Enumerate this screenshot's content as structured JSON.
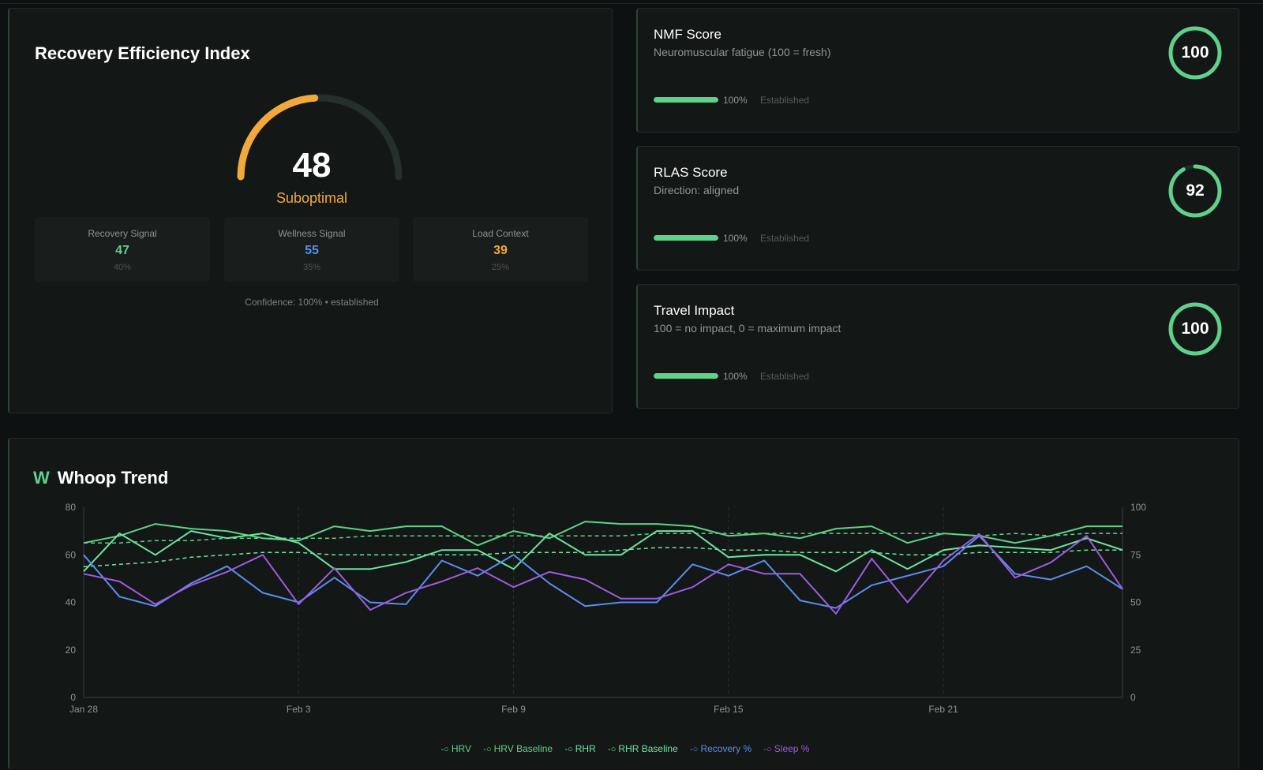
{
  "rei": {
    "title": "Recovery Efficiency Index",
    "score": "48",
    "score_value": 48,
    "status": "Suboptimal",
    "status_color": "#f2a93b",
    "signals": [
      {
        "label": "Recovery Signal",
        "value": "47",
        "weight": "40%",
        "color": "#5fd18a"
      },
      {
        "label": "Wellness Signal",
        "value": "55",
        "weight": "35%",
        "color": "#5b8def"
      },
      {
        "label": "Load Context",
        "value": "39",
        "weight": "25%",
        "color": "#f2a93b"
      }
    ],
    "confidence": "Confidence: 100% • established"
  },
  "scores": [
    {
      "title": "NMF Score",
      "subtitle": "Neuromuscular fatigue (100 = fresh)",
      "value": "100",
      "value_num": 100,
      "confidence_pct": "100%",
      "confidence_num": 100,
      "state": "Established"
    },
    {
      "title": "RLAS Score",
      "subtitle": "Direction: aligned",
      "value": "92",
      "value_num": 92,
      "confidence_pct": "100%",
      "confidence_num": 100,
      "state": "Established"
    },
    {
      "title": "Travel Impact",
      "subtitle": "100 = no impact, 0 = maximum impact",
      "value": "100",
      "value_num": 100,
      "confidence_pct": "100%",
      "confidence_num": 100,
      "state": "Established"
    }
  ],
  "trend": {
    "icon": "W",
    "title": "Whoop Trend",
    "legend": [
      "HRV",
      "HRV Baseline",
      "RHR",
      "RHR Baseline",
      "Recovery %",
      "Sleep %"
    ]
  },
  "chart_data": {
    "type": "line",
    "x_ticks": [
      "Jan 28",
      "Feb 3",
      "Feb 9",
      "Feb 15",
      "Feb 21"
    ],
    "x_tick_index": [
      0,
      6,
      12,
      18,
      24
    ],
    "x_count": 30,
    "y_left": {
      "ticks": [
        0,
        20,
        40,
        60,
        80
      ],
      "range": [
        0,
        80
      ]
    },
    "y_right": {
      "ticks": [
        0,
        25,
        50,
        75,
        100
      ],
      "range": [
        0,
        100
      ]
    },
    "grid": "vertical dashed",
    "series": [
      {
        "name": "HRV",
        "axis": "left",
        "color": "#5fd18a",
        "dashed": false,
        "values": [
          65,
          68,
          73,
          71,
          70,
          67,
          66,
          72,
          70,
          72,
          72,
          64,
          70,
          67,
          74,
          73,
          73,
          72,
          68,
          69,
          67,
          71,
          72,
          65,
          69,
          68,
          65,
          68,
          72,
          72
        ]
      },
      {
        "name": "HRV Baseline",
        "axis": "left",
        "color": "#5fd18a",
        "dashed": true,
        "values": [
          65,
          65,
          66,
          66,
          67,
          67,
          67,
          67,
          68,
          68,
          68,
          68,
          68,
          68,
          68,
          68,
          69,
          69,
          69,
          69,
          69,
          69,
          69,
          69,
          69,
          68,
          69,
          68,
          69,
          69
        ]
      },
      {
        "name": "RHR",
        "axis": "left",
        "color": "#6fe3a0",
        "dashed": false,
        "values": [
          53,
          69,
          60,
          70,
          67,
          69,
          65,
          54,
          54,
          57,
          62,
          62,
          54,
          69,
          60,
          60,
          70,
          70,
          59,
          60,
          60,
          53,
          62,
          54,
          62,
          64,
          63,
          62,
          67,
          62
        ]
      },
      {
        "name": "RHR Baseline",
        "axis": "left",
        "color": "#6fe3a0",
        "dashed": true,
        "values": [
          55,
          56,
          57,
          59,
          60,
          61,
          61,
          60,
          60,
          60,
          60,
          60,
          61,
          61,
          61,
          62,
          63,
          63,
          62,
          62,
          61,
          61,
          61,
          60,
          60,
          61,
          61,
          61,
          62,
          62
        ]
      },
      {
        "name": "Recovery %",
        "axis": "right",
        "color": "#5b8def",
        "dashed": false,
        "values": [
          75,
          53,
          48,
          60,
          69,
          55,
          50,
          63,
          50,
          49,
          72,
          64,
          75,
          60,
          48,
          50,
          50,
          70,
          64,
          72,
          51,
          47,
          59,
          64,
          69,
          85,
          65,
          62,
          69,
          57
        ]
      },
      {
        "name": "Sleep %",
        "axis": "right",
        "color": "#a05be0",
        "dashed": false,
        "values": [
          65,
          61,
          49,
          59,
          66,
          75,
          49,
          68,
          46,
          55,
          61,
          68,
          58,
          66,
          62,
          52,
          52,
          58,
          70,
          65,
          65,
          44,
          73,
          50,
          72,
          86,
          63,
          71,
          85,
          57
        ]
      }
    ]
  }
}
